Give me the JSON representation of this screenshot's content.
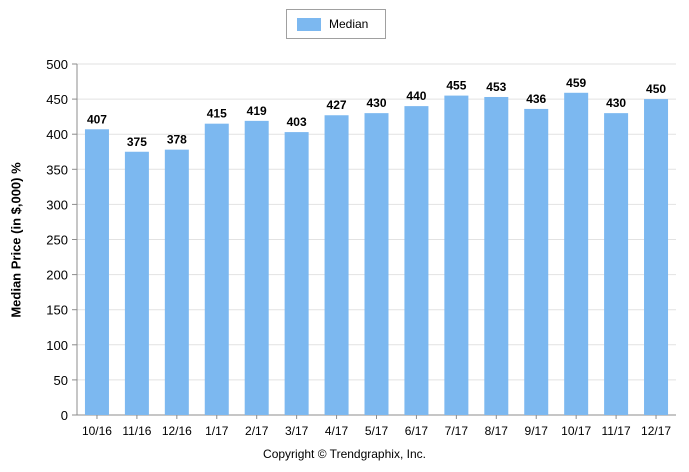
{
  "chart_data": {
    "type": "bar",
    "categories": [
      "10/16",
      "11/16",
      "12/16",
      "1/17",
      "2/17",
      "3/17",
      "4/17",
      "5/17",
      "6/17",
      "7/17",
      "8/17",
      "9/17",
      "10/17",
      "11/17",
      "12/17"
    ],
    "series": [
      {
        "name": "Median",
        "values": [
          407,
          375,
          378,
          415,
          419,
          403,
          427,
          430,
          440,
          455,
          453,
          436,
          459,
          430,
          450
        ]
      }
    ],
    "title": "",
    "xlabel": "",
    "ylabel": "Median Price (in $,000) %",
    "ylim": [
      0,
      500
    ],
    "yticks": [
      0,
      50,
      100,
      150,
      200,
      250,
      300,
      350,
      400,
      450,
      500
    ],
    "grid": true,
    "legend_position": "top-center",
    "bar_color": "#7cb8f0",
    "data_labels": true
  },
  "footer": "Copyright © Trendgraphix, Inc."
}
